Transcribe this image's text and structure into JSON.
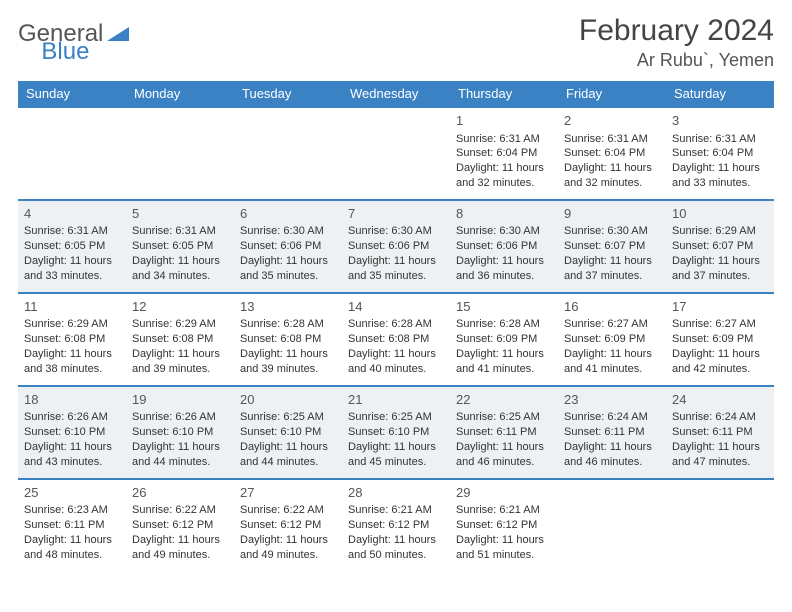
{
  "logo": {
    "part1": "General",
    "part2": "Blue"
  },
  "title": "February 2024",
  "location": "Ar Rubu`, Yemen",
  "colors": {
    "header_bg": "#3b82c4",
    "header_text": "#ffffff",
    "alt_row_bg": "#eef1f3",
    "border": "#3b82c4"
  },
  "day_headers": [
    "Sunday",
    "Monday",
    "Tuesday",
    "Wednesday",
    "Thursday",
    "Friday",
    "Saturday"
  ],
  "weeks": [
    [
      null,
      null,
      null,
      null,
      {
        "n": "1",
        "sr": "Sunrise: 6:31 AM",
        "ss": "Sunset: 6:04 PM",
        "dl": "Daylight: 11 hours and 32 minutes."
      },
      {
        "n": "2",
        "sr": "Sunrise: 6:31 AM",
        "ss": "Sunset: 6:04 PM",
        "dl": "Daylight: 11 hours and 32 minutes."
      },
      {
        "n": "3",
        "sr": "Sunrise: 6:31 AM",
        "ss": "Sunset: 6:04 PM",
        "dl": "Daylight: 11 hours and 33 minutes."
      }
    ],
    [
      {
        "n": "4",
        "sr": "Sunrise: 6:31 AM",
        "ss": "Sunset: 6:05 PM",
        "dl": "Daylight: 11 hours and 33 minutes."
      },
      {
        "n": "5",
        "sr": "Sunrise: 6:31 AM",
        "ss": "Sunset: 6:05 PM",
        "dl": "Daylight: 11 hours and 34 minutes."
      },
      {
        "n": "6",
        "sr": "Sunrise: 6:30 AM",
        "ss": "Sunset: 6:06 PM",
        "dl": "Daylight: 11 hours and 35 minutes."
      },
      {
        "n": "7",
        "sr": "Sunrise: 6:30 AM",
        "ss": "Sunset: 6:06 PM",
        "dl": "Daylight: 11 hours and 35 minutes."
      },
      {
        "n": "8",
        "sr": "Sunrise: 6:30 AM",
        "ss": "Sunset: 6:06 PM",
        "dl": "Daylight: 11 hours and 36 minutes."
      },
      {
        "n": "9",
        "sr": "Sunrise: 6:30 AM",
        "ss": "Sunset: 6:07 PM",
        "dl": "Daylight: 11 hours and 37 minutes."
      },
      {
        "n": "10",
        "sr": "Sunrise: 6:29 AM",
        "ss": "Sunset: 6:07 PM",
        "dl": "Daylight: 11 hours and 37 minutes."
      }
    ],
    [
      {
        "n": "11",
        "sr": "Sunrise: 6:29 AM",
        "ss": "Sunset: 6:08 PM",
        "dl": "Daylight: 11 hours and 38 minutes."
      },
      {
        "n": "12",
        "sr": "Sunrise: 6:29 AM",
        "ss": "Sunset: 6:08 PM",
        "dl": "Daylight: 11 hours and 39 minutes."
      },
      {
        "n": "13",
        "sr": "Sunrise: 6:28 AM",
        "ss": "Sunset: 6:08 PM",
        "dl": "Daylight: 11 hours and 39 minutes."
      },
      {
        "n": "14",
        "sr": "Sunrise: 6:28 AM",
        "ss": "Sunset: 6:08 PM",
        "dl": "Daylight: 11 hours and 40 minutes."
      },
      {
        "n": "15",
        "sr": "Sunrise: 6:28 AM",
        "ss": "Sunset: 6:09 PM",
        "dl": "Daylight: 11 hours and 41 minutes."
      },
      {
        "n": "16",
        "sr": "Sunrise: 6:27 AM",
        "ss": "Sunset: 6:09 PM",
        "dl": "Daylight: 11 hours and 41 minutes."
      },
      {
        "n": "17",
        "sr": "Sunrise: 6:27 AM",
        "ss": "Sunset: 6:09 PM",
        "dl": "Daylight: 11 hours and 42 minutes."
      }
    ],
    [
      {
        "n": "18",
        "sr": "Sunrise: 6:26 AM",
        "ss": "Sunset: 6:10 PM",
        "dl": "Daylight: 11 hours and 43 minutes."
      },
      {
        "n": "19",
        "sr": "Sunrise: 6:26 AM",
        "ss": "Sunset: 6:10 PM",
        "dl": "Daylight: 11 hours and 44 minutes."
      },
      {
        "n": "20",
        "sr": "Sunrise: 6:25 AM",
        "ss": "Sunset: 6:10 PM",
        "dl": "Daylight: 11 hours and 44 minutes."
      },
      {
        "n": "21",
        "sr": "Sunrise: 6:25 AM",
        "ss": "Sunset: 6:10 PM",
        "dl": "Daylight: 11 hours and 45 minutes."
      },
      {
        "n": "22",
        "sr": "Sunrise: 6:25 AM",
        "ss": "Sunset: 6:11 PM",
        "dl": "Daylight: 11 hours and 46 minutes."
      },
      {
        "n": "23",
        "sr": "Sunrise: 6:24 AM",
        "ss": "Sunset: 6:11 PM",
        "dl": "Daylight: 11 hours and 46 minutes."
      },
      {
        "n": "24",
        "sr": "Sunrise: 6:24 AM",
        "ss": "Sunset: 6:11 PM",
        "dl": "Daylight: 11 hours and 47 minutes."
      }
    ],
    [
      {
        "n": "25",
        "sr": "Sunrise: 6:23 AM",
        "ss": "Sunset: 6:11 PM",
        "dl": "Daylight: 11 hours and 48 minutes."
      },
      {
        "n": "26",
        "sr": "Sunrise: 6:22 AM",
        "ss": "Sunset: 6:12 PM",
        "dl": "Daylight: 11 hours and 49 minutes."
      },
      {
        "n": "27",
        "sr": "Sunrise: 6:22 AM",
        "ss": "Sunset: 6:12 PM",
        "dl": "Daylight: 11 hours and 49 minutes."
      },
      {
        "n": "28",
        "sr": "Sunrise: 6:21 AM",
        "ss": "Sunset: 6:12 PM",
        "dl": "Daylight: 11 hours and 50 minutes."
      },
      {
        "n": "29",
        "sr": "Sunrise: 6:21 AM",
        "ss": "Sunset: 6:12 PM",
        "dl": "Daylight: 11 hours and 51 minutes."
      },
      null,
      null
    ]
  ]
}
